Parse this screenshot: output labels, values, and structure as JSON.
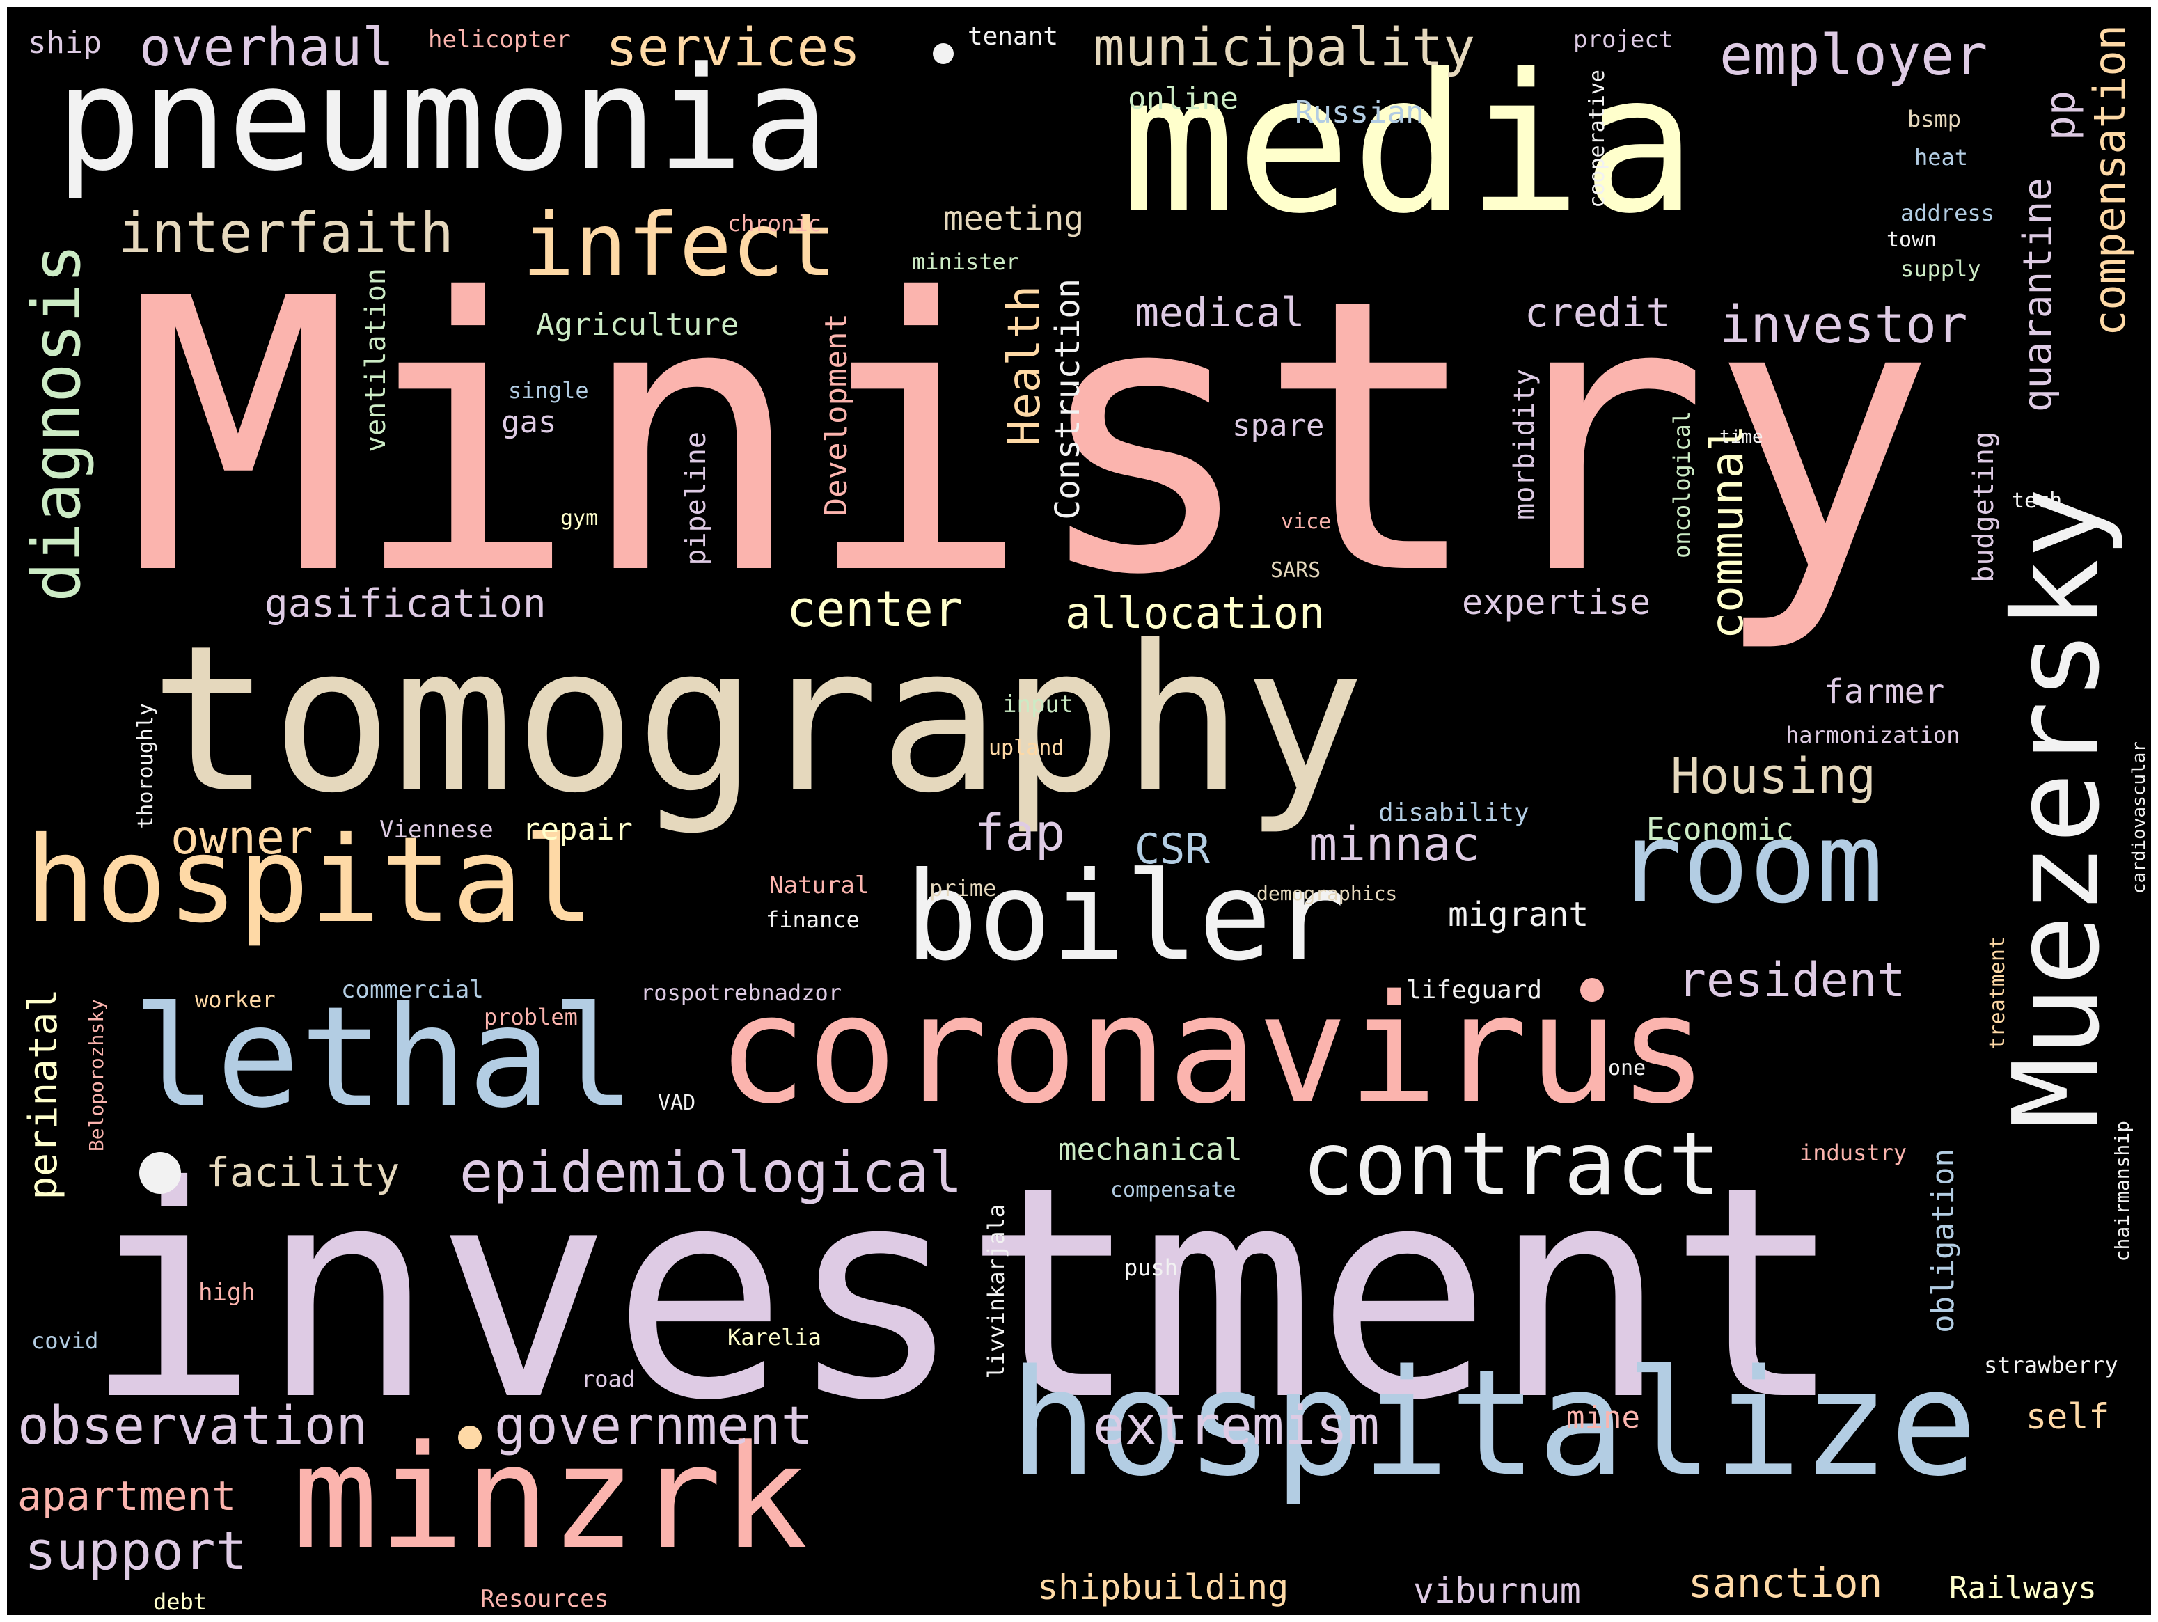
{
  "colors": {
    "background": "#000000",
    "pink": "#fbb4ae",
    "blue": "#b3cde3",
    "green": "#ccebc5",
    "lavender": "#decbe4",
    "peach": "#fed9a6",
    "yellow": "#ffffcc",
    "tan": "#e5d8bd",
    "white": "#f2f2f2"
  },
  "words": [
    {
      "text": "Ministry",
      "color": "pink"
    },
    {
      "text": "investment",
      "color": "lavender"
    },
    {
      "text": "tomography",
      "color": "tan"
    },
    {
      "text": "media",
      "color": "yellow"
    },
    {
      "text": "pneumonia",
      "color": "white"
    },
    {
      "text": "coronavirus",
      "color": "pink"
    },
    {
      "text": "hospitalize",
      "color": "blue"
    },
    {
      "text": "minzrk",
      "color": "pink"
    },
    {
      "text": "lethal",
      "color": "blue"
    },
    {
      "text": "Muezersky",
      "color": "white"
    },
    {
      "text": "hospital",
      "color": "peach"
    },
    {
      "text": "boiler",
      "color": "white"
    },
    {
      "text": "room",
      "color": "blue"
    },
    {
      "text": "contract",
      "color": "white"
    },
    {
      "text": "infect",
      "color": "peach"
    },
    {
      "text": "diagnosis",
      "color": "green"
    },
    {
      "text": "epidemiological",
      "color": "lavender"
    },
    {
      "text": "observation",
      "color": "lavender"
    },
    {
      "text": "government",
      "color": "lavender"
    },
    {
      "text": "extremism",
      "color": "lavender"
    },
    {
      "text": "support",
      "color": "lavender"
    },
    {
      "text": "interfaith",
      "color": "tan"
    },
    {
      "text": "municipality",
      "color": "tan"
    },
    {
      "text": "employer",
      "color": "lavender"
    },
    {
      "text": "services",
      "color": "peach"
    },
    {
      "text": "overhaul",
      "color": "lavender"
    },
    {
      "text": "investor",
      "color": "lavender"
    },
    {
      "text": "compensation",
      "color": "peach"
    },
    {
      "text": "quarantine",
      "color": "lavender"
    },
    {
      "text": "perinatal",
      "color": "yellow"
    },
    {
      "text": "Housing",
      "color": "tan"
    },
    {
      "text": "center",
      "color": "yellow"
    },
    {
      "text": "allocation",
      "color": "yellow"
    },
    {
      "text": "gasification",
      "color": "lavender"
    },
    {
      "text": "communal",
      "color": "yellow"
    },
    {
      "text": "Health",
      "color": "peach"
    },
    {
      "text": "resident",
      "color": "lavender"
    },
    {
      "text": "owner",
      "color": "peach"
    },
    {
      "text": "minnac",
      "color": "lavender"
    },
    {
      "text": "fap",
      "color": "lavender"
    },
    {
      "text": "facility",
      "color": "tan"
    },
    {
      "text": "apartment",
      "color": "pink"
    },
    {
      "text": "sanction",
      "color": "peach"
    },
    {
      "text": "viburnum",
      "color": "lavender"
    },
    {
      "text": "shipbuilding",
      "color": "peach"
    },
    {
      "text": "obligation",
      "color": "blue"
    },
    {
      "text": "self",
      "color": "peach"
    },
    {
      "text": "Railways",
      "color": "yellow"
    },
    {
      "text": "medical",
      "color": "lavender"
    },
    {
      "text": "credit",
      "color": "lavender"
    },
    {
      "text": "CSR",
      "color": "blue"
    },
    {
      "text": "expertise",
      "color": "lavender"
    },
    {
      "text": "farmer",
      "color": "lavender"
    },
    {
      "text": "migrant",
      "color": "white"
    },
    {
      "text": "mechanical",
      "color": "green"
    },
    {
      "text": "Agriculture",
      "color": "green"
    },
    {
      "text": "meeting",
      "color": "tan"
    },
    {
      "text": "Construction",
      "color": "white"
    },
    {
      "text": "Development",
      "color": "pink"
    },
    {
      "text": "ventilation",
      "color": "green"
    },
    {
      "text": "pipeline",
      "color": "lavender"
    },
    {
      "text": "morbidity",
      "color": "lavender"
    },
    {
      "text": "Economic",
      "color": "green"
    },
    {
      "text": "repair",
      "color": "yellow"
    },
    {
      "text": "budgeting",
      "color": "lavender"
    },
    {
      "text": "pp",
      "color": "lavender"
    },
    {
      "text": "online",
      "color": "green"
    },
    {
      "text": "Russian",
      "color": "blue"
    },
    {
      "text": "spare",
      "color": "lavender"
    },
    {
      "text": "gas",
      "color": "lavender"
    },
    {
      "text": "mine",
      "color": "pink"
    },
    {
      "text": "ship",
      "color": "lavender"
    },
    {
      "text": "helicopter",
      "color": "pink"
    },
    {
      "text": "tenant",
      "color": "white"
    },
    {
      "text": "project",
      "color": "lavender"
    },
    {
      "text": "cooperative",
      "color": "white"
    },
    {
      "text": "bsmp",
      "color": "tan"
    },
    {
      "text": "heat",
      "color": "blue"
    },
    {
      "text": "address",
      "color": "blue"
    },
    {
      "text": "town",
      "color": "white"
    },
    {
      "text": "supply",
      "color": "green"
    },
    {
      "text": "chronic",
      "color": "pink"
    },
    {
      "text": "minister",
      "color": "green"
    },
    {
      "text": "single",
      "color": "blue"
    },
    {
      "text": "gym",
      "color": "yellow"
    },
    {
      "text": "oncological",
      "color": "green"
    },
    {
      "text": "time",
      "color": "white"
    },
    {
      "text": "tech",
      "color": "white"
    },
    {
      "text": "vice",
      "color": "pink"
    },
    {
      "text": "SARS",
      "color": "tan"
    },
    {
      "text": "input",
      "color": "green"
    },
    {
      "text": "upland",
      "color": "peach"
    },
    {
      "text": "harmonization",
      "color": "lavender"
    },
    {
      "text": "thoroughly",
      "color": "white"
    },
    {
      "text": "Viennese",
      "color": "lavender"
    },
    {
      "text": "disability",
      "color": "blue"
    },
    {
      "text": "cardiovascular",
      "color": "white"
    },
    {
      "text": "Natural",
      "color": "pink"
    },
    {
      "text": "prime",
      "color": "tan"
    },
    {
      "text": "demographics",
      "color": "tan"
    },
    {
      "text": "finance",
      "color": "white"
    },
    {
      "text": "treatment",
      "color": "peach"
    },
    {
      "text": "worker",
      "color": "peach"
    },
    {
      "text": "commercial",
      "color": "blue"
    },
    {
      "text": "rospotrebnadzor",
      "color": "lavender"
    },
    {
      "text": "lifeguard",
      "color": "white"
    },
    {
      "text": "problem",
      "color": "pink"
    },
    {
      "text": "Beloporozhsky",
      "color": "pink"
    },
    {
      "text": "one",
      "color": "white"
    },
    {
      "text": "VAD",
      "color": "white"
    },
    {
      "text": "industry",
      "color": "pink"
    },
    {
      "text": "chairmanship",
      "color": "white"
    },
    {
      "text": "compensate",
      "color": "blue"
    },
    {
      "text": "high",
      "color": "pink"
    },
    {
      "text": "push",
      "color": "white"
    },
    {
      "text": "covid",
      "color": "blue"
    },
    {
      "text": "Karelia",
      "color": "yellow"
    },
    {
      "text": "livvinkarjala",
      "color": "white"
    },
    {
      "text": "road",
      "color": "lavender"
    },
    {
      "text": "strawberry",
      "color": "white"
    },
    {
      "text": "debt",
      "color": "yellow"
    },
    {
      "text": "Resources",
      "color": "pink"
    }
  ]
}
